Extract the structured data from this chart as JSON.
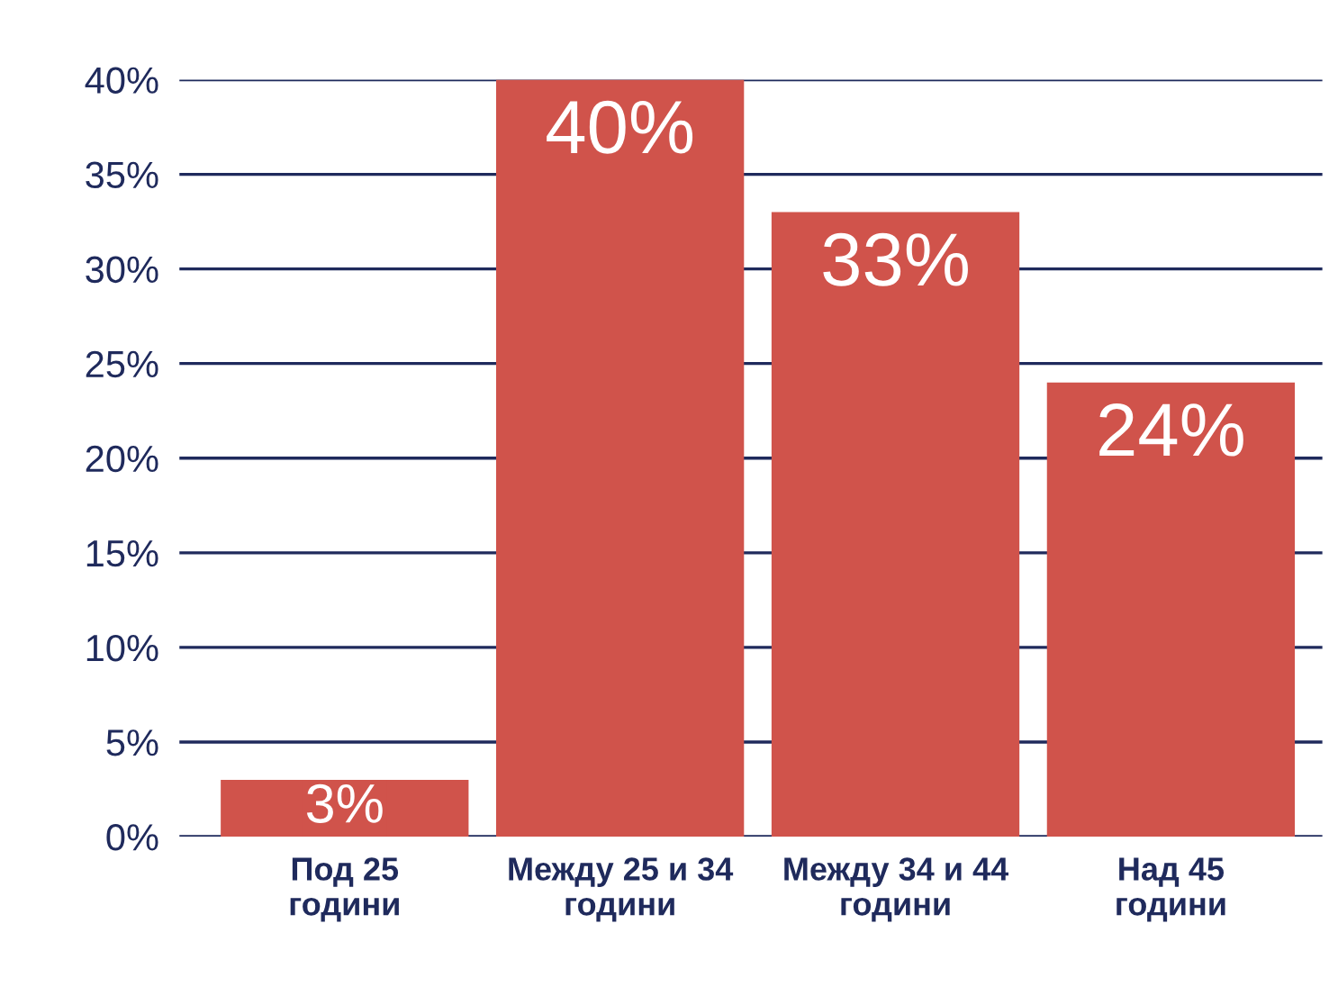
{
  "chart_data": {
    "type": "bar",
    "categories": [
      "Под 25\nгодини",
      "Между 25 и 34\nгодини",
      "Между 34 и 44\nгодини",
      "Над 45\nгодини"
    ],
    "values": [
      3,
      40,
      33,
      24
    ],
    "color": "#d0534b",
    "value_labels": [
      "3%",
      "40%",
      "33%",
      "24%"
    ],
    "ylim": [
      0,
      40
    ],
    "yticks": [
      {
        "value": 0,
        "label": "0%"
      },
      {
        "value": 5,
        "label": "5%"
      },
      {
        "value": 10,
        "label": "10%"
      },
      {
        "value": 15,
        "label": "15%"
      },
      {
        "value": 20,
        "label": "20%"
      },
      {
        "value": 25,
        "label": "25%"
      },
      {
        "value": 30,
        "label": "30%"
      },
      {
        "value": 35,
        "label": "35%"
      },
      {
        "value": 40,
        "label": "40%"
      }
    ],
    "grid": "y"
  }
}
